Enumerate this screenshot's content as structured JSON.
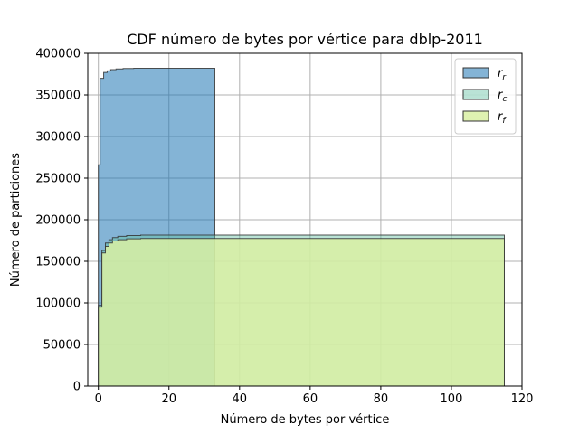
{
  "chart_data": {
    "type": "area",
    "title": "CDF número de bytes por vértice para dblp-2011",
    "xlabel": "Número de bytes por vértice",
    "ylabel": "Número de particiones",
    "xlim": [
      -3,
      120
    ],
    "ylim": [
      0,
      400000
    ],
    "x_ticks": [
      0,
      20,
      40,
      60,
      80,
      100,
      120
    ],
    "y_ticks": [
      0,
      50000,
      100000,
      150000,
      200000,
      250000,
      300000,
      350000,
      400000
    ],
    "grid": true,
    "legend_position": "top-right",
    "series": [
      {
        "name": "r_r",
        "label_main": "r",
        "label_sub": "r",
        "color": "#1f77b4",
        "fill_opacity": 0.55,
        "points": [
          [
            0,
            0
          ],
          [
            0,
            266000
          ],
          [
            0.5,
            266000
          ],
          [
            0.5,
            370000
          ],
          [
            1.5,
            370000
          ],
          [
            1.5,
            377000
          ],
          [
            2.5,
            377000
          ],
          [
            2.5,
            379000
          ],
          [
            3.5,
            379000
          ],
          [
            3.5,
            380500
          ],
          [
            5,
            380500
          ],
          [
            5,
            381300
          ],
          [
            7,
            381300
          ],
          [
            7,
            381800
          ],
          [
            10,
            381800
          ],
          [
            10,
            382000
          ],
          [
            33,
            382000
          ],
          [
            33,
            0
          ]
        ]
      },
      {
        "name": "r_c",
        "label_main": "r",
        "label_sub": "c",
        "color": "#66c2a4",
        "fill_opacity": 0.45,
        "points": [
          [
            0,
            0
          ],
          [
            0,
            97000
          ],
          [
            1,
            97000
          ],
          [
            1,
            163000
          ],
          [
            2,
            163000
          ],
          [
            2,
            172000
          ],
          [
            3,
            172000
          ],
          [
            3,
            176000
          ],
          [
            4,
            176000
          ],
          [
            4,
            178500
          ],
          [
            5.5,
            178500
          ],
          [
            5.5,
            180000
          ],
          [
            8,
            180000
          ],
          [
            8,
            181000
          ],
          [
            12,
            181000
          ],
          [
            12,
            181500
          ],
          [
            115,
            181500
          ],
          [
            115,
            0
          ]
        ]
      },
      {
        "name": "r_f",
        "label_main": "r",
        "label_sub": "f",
        "color": "#d9f0a3",
        "fill_opacity": 0.85,
        "points": [
          [
            0,
            0
          ],
          [
            0,
            95000
          ],
          [
            1,
            95000
          ],
          [
            1,
            160000
          ],
          [
            2,
            160000
          ],
          [
            2,
            168000
          ],
          [
            3,
            168000
          ],
          [
            3,
            172000
          ],
          [
            4,
            172000
          ],
          [
            4,
            174500
          ],
          [
            5.5,
            174500
          ],
          [
            5.5,
            176000
          ],
          [
            8,
            176000
          ],
          [
            8,
            177000
          ],
          [
            12,
            177000
          ],
          [
            12,
            177500
          ],
          [
            115,
            177500
          ],
          [
            115,
            0
          ]
        ]
      }
    ]
  }
}
